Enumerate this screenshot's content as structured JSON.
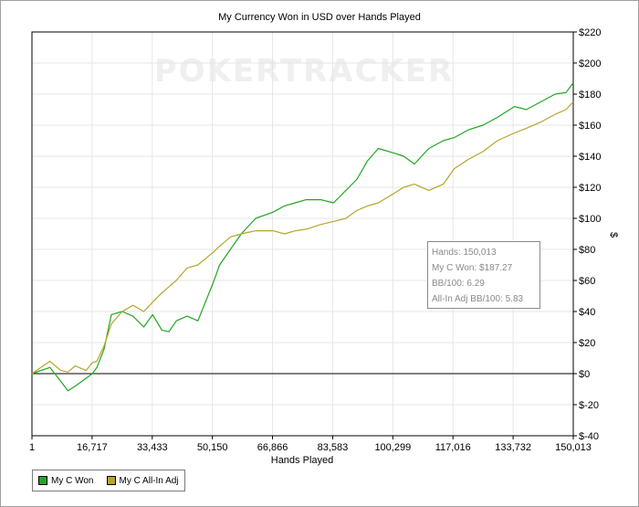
{
  "chart_data": {
    "type": "line",
    "title": "My Currency Won in USD over Hands Played",
    "xlabel": "Hands Played",
    "ylabel": "$",
    "x_ticks": [
      "1",
      "16,717",
      "33,433",
      "50,150",
      "66,866",
      "83,583",
      "100,299",
      "117,016",
      "133,732",
      "150,013"
    ],
    "x_range": [
      1,
      150013
    ],
    "y_ticks": [
      "$-40",
      "$-20",
      "$0",
      "$20",
      "$40",
      "$60",
      "$80",
      "$100",
      "$120",
      "$140",
      "$160",
      "$180",
      "$200",
      "$220"
    ],
    "ylim": [
      -40,
      220
    ],
    "grid": true,
    "legend_position": "bottom-left",
    "watermark": "POKERTRACKER",
    "series": [
      {
        "name": "My C Won",
        "color": "#22a522",
        "x": [
          1,
          5000,
          8000,
          10000,
          12000,
          15000,
          16717,
          18000,
          20000,
          22000,
          25000,
          28000,
          31000,
          33433,
          36000,
          38000,
          40000,
          43000,
          46000,
          50150,
          52000,
          55000,
          58000,
          62000,
          66866,
          70000,
          73000,
          76000,
          80000,
          83583,
          87000,
          90000,
          93000,
          96000,
          100299,
          103000,
          106000,
          110000,
          114000,
          117016,
          121000,
          125000,
          129000,
          133732,
          137000,
          141000,
          145000,
          148000,
          150013
        ],
        "y": [
          0,
          4,
          -5,
          -11,
          -8,
          -3,
          0,
          4,
          16,
          38,
          40,
          37,
          30,
          38,
          28,
          27,
          34,
          37,
          34,
          58,
          70,
          80,
          90,
          100,
          104,
          108,
          110,
          112,
          112,
          110,
          118,
          125,
          137,
          145,
          142,
          140,
          135,
          145,
          150,
          152,
          157,
          160,
          165,
          172,
          170,
          175,
          180,
          181,
          187.27
        ]
      },
      {
        "name": "My C All-In Adj",
        "color": "#b5a52a",
        "x": [
          1,
          5000,
          8000,
          10000,
          12000,
          15000,
          16717,
          18000,
          20000,
          22000,
          25000,
          28000,
          31000,
          33433,
          36000,
          38000,
          40000,
          43000,
          46000,
          50150,
          52000,
          55000,
          58000,
          62000,
          66866,
          70000,
          73000,
          76000,
          80000,
          83583,
          87000,
          90000,
          93000,
          96000,
          100299,
          103000,
          106000,
          110000,
          114000,
          117016,
          121000,
          125000,
          129000,
          133732,
          137000,
          141000,
          145000,
          148000,
          150013
        ],
        "y": [
          0,
          8,
          2,
          1,
          5,
          2,
          7,
          8,
          18,
          32,
          40,
          44,
          40,
          46,
          52,
          56,
          60,
          68,
          70,
          78,
          82,
          88,
          90,
          92,
          92,
          90,
          92,
          93,
          96,
          98,
          100,
          105,
          108,
          110,
          116,
          120,
          122,
          118,
          122,
          132,
          138,
          143,
          150,
          155,
          158,
          162,
          167,
          170,
          175
        ]
      }
    ]
  },
  "info_box": {
    "hands": "Hands: 150,013",
    "won": "My C Won: $187.27",
    "bb100": "BB/100: 6.29",
    "allin_bb100": "All-In Adj BB/100: 5.83"
  },
  "legend": {
    "item1": "My C Won",
    "item2": "My C All-In Adj"
  }
}
